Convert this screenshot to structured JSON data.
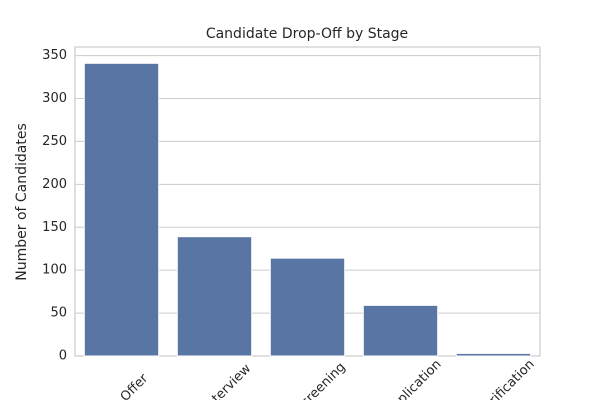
{
  "chart_data": {
    "type": "bar",
    "title": "Candidate Drop-Off by Stage",
    "y_label": "Number of Candidates",
    "categories": [
      "Offer",
      "Interview",
      "Screening",
      "Application",
      "Verification"
    ],
    "values": [
      341,
      139,
      114,
      59,
      3
    ],
    "color": "#5875a4",
    "ylim": [
      0,
      360
    ],
    "yticks": [
      0,
      50,
      100,
      150,
      200,
      250,
      300,
      350
    ],
    "grid": true
  }
}
